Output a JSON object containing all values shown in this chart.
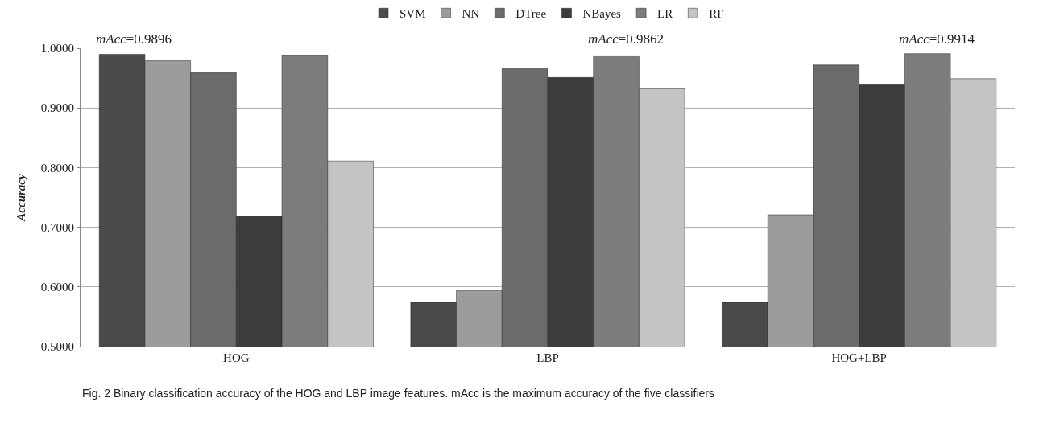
{
  "chart_data": {
    "type": "bar",
    "ylabel": "Accuracy",
    "categories": [
      "HOG",
      "LBP",
      "HOG+LBP"
    ],
    "series": [
      {
        "name": "SVM",
        "color": "#4a4a4a",
        "values": [
          0.99,
          0.574,
          0.574
        ]
      },
      {
        "name": "NN",
        "color": "#9c9c9c",
        "values": [
          0.979,
          0.594,
          0.721
        ]
      },
      {
        "name": "DTree",
        "color": "#6b6b6b",
        "values": [
          0.96,
          0.967,
          0.972
        ]
      },
      {
        "name": "NBayes",
        "color": "#3c3c3c",
        "values": [
          0.719,
          0.951,
          0.939
        ]
      },
      {
        "name": "LR",
        "color": "#7c7c7c",
        "values": [
          0.988,
          0.986,
          0.991
        ]
      },
      {
        "name": "RF",
        "color": "#c4c4c4",
        "values": [
          0.811,
          0.932,
          0.949
        ]
      }
    ],
    "ylim": [
      0.5,
      1.0
    ],
    "yticks": [
      {
        "value": 0.5,
        "label": "0.5000"
      },
      {
        "value": 0.6,
        "label": "0.6000"
      },
      {
        "value": 0.7,
        "label": "0.7000"
      },
      {
        "value": 0.8,
        "label": "0.8000"
      },
      {
        "value": 0.9,
        "label": "0.9000"
      },
      {
        "value": 1.0,
        "label": "1.0000"
      }
    ],
    "grid": "y",
    "legend": "top",
    "annotations": [
      "mAcc=0.9896",
      "mAcc=0.9862",
      "mAcc=0.9914",
      "Fig. 2 Binary classification accuracy of the HOG and LBP image features. mAcc is the maximum accuracy of the five classifiers"
    ]
  }
}
